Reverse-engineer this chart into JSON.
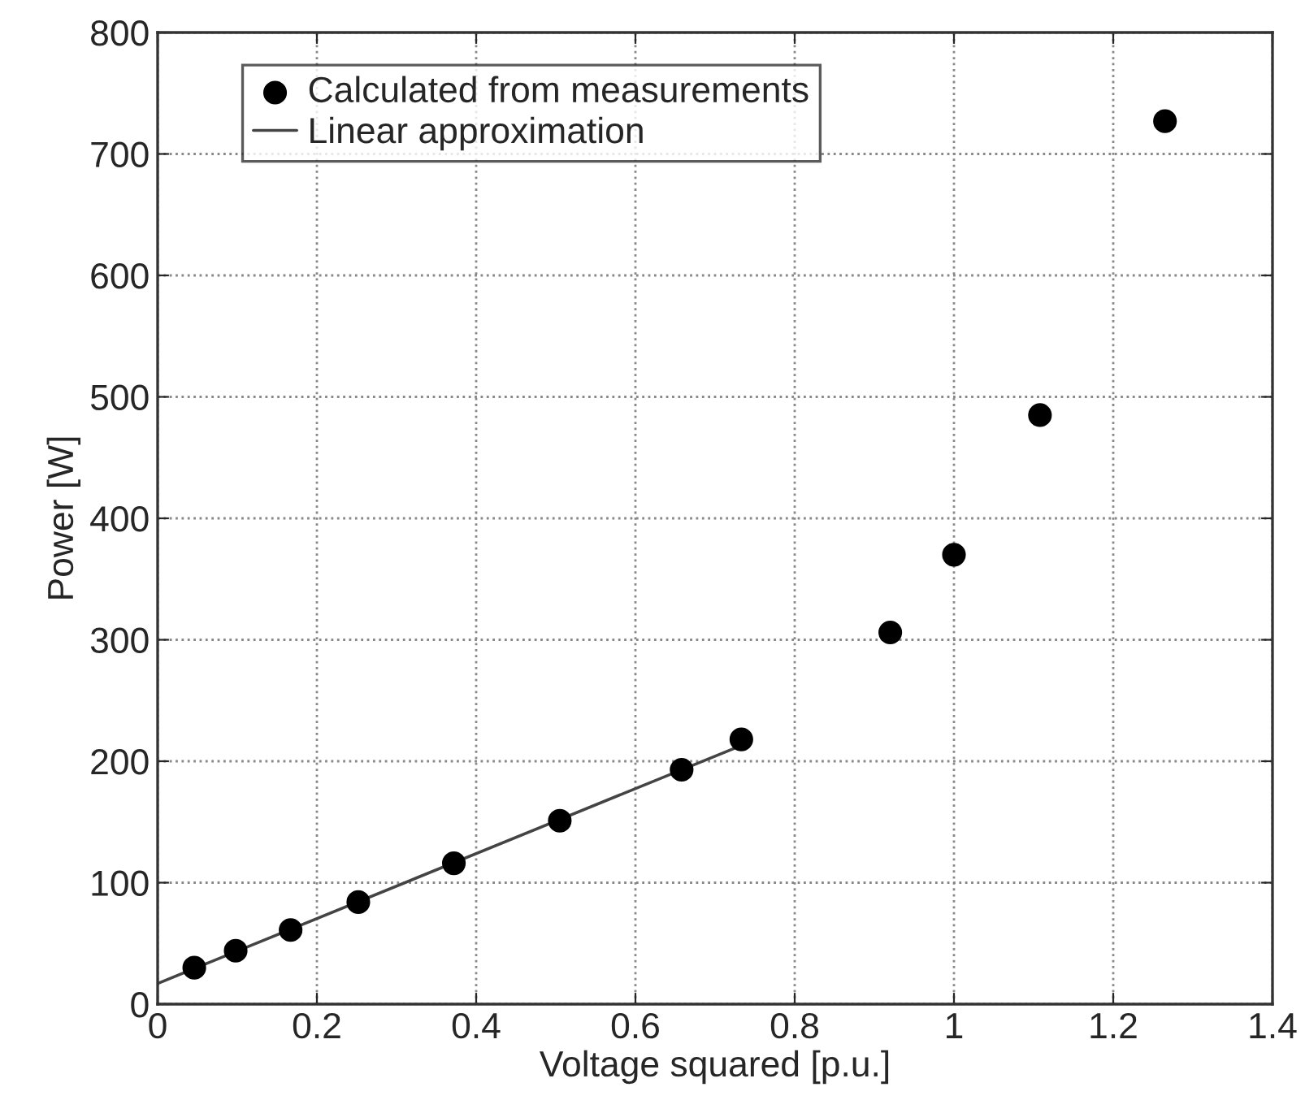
{
  "chart_data": {
    "type": "scatter",
    "xlabel": "Voltage squared [p.u.]",
    "ylabel": "Power [W]",
    "series": [
      {
        "name": "Calculated from measurements",
        "color": "#000000",
        "marker": "circle",
        "x": [
          0.046,
          0.098,
          0.167,
          0.252,
          0.372,
          0.505,
          0.658,
          0.733,
          0.92,
          1.0,
          1.108,
          1.265
        ],
        "values": [
          30,
          44,
          61,
          84,
          116,
          151,
          193,
          218,
          306,
          370,
          485,
          727
        ]
      },
      {
        "name": "Linear approximation",
        "type": "line",
        "color": "#444444",
        "marker": "none",
        "line_style": "solid",
        "x": [
          0,
          0.733
        ],
        "values": [
          17,
          213
        ]
      }
    ],
    "xlim": [
      0,
      1.4
    ],
    "xticks": [
      0,
      0.2,
      0.4,
      0.6,
      0.8,
      1,
      1.2,
      1.4
    ],
    "ylim": [
      0,
      800
    ],
    "yticks": [
      0,
      100,
      200,
      300,
      400,
      500,
      600,
      700,
      800
    ],
    "grid": true,
    "legend": "top left"
  }
}
